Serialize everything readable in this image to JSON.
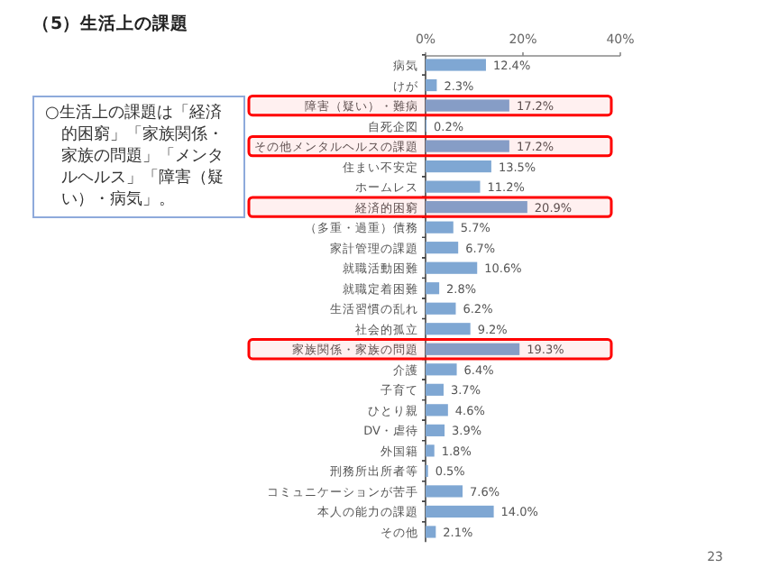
{
  "chart_data": {
    "type": "bar",
    "orientation": "horizontal",
    "title": "（5）生活上の課題",
    "categories": [
      "病気",
      "けが",
      "障害（疑い）・難病",
      "自死企図",
      "その他メンタルヘルスの課題",
      "住まい不安定",
      "ホームレス",
      "経済的困窮",
      "（多重・過重）債務",
      "家計管理の課題",
      "就職活動困難",
      "就職定着困難",
      "生活習慣の乱れ",
      "社会的孤立",
      "家族関係・家族の問題",
      "介護",
      "子育て",
      "ひとり親",
      "DV・虐待",
      "外国籍",
      "刑務所出所者等",
      "コミュニケーションが苦手",
      "本人の能力の課題",
      "その他"
    ],
    "values": [
      12.4,
      2.3,
      17.2,
      0.2,
      17.2,
      13.5,
      11.2,
      20.9,
      5.7,
      6.7,
      10.6,
      2.8,
      6.2,
      9.2,
      19.3,
      6.4,
      3.7,
      4.6,
      3.9,
      1.8,
      0.5,
      7.6,
      14.0,
      2.1
    ],
    "value_labels": [
      "12.4%",
      "2.3%",
      "17.2%",
      "0.2%",
      "17.2%",
      "13.5%",
      "11.2%",
      "20.9%",
      "5.7%",
      "6.7%",
      "10.6%",
      "2.8%",
      "6.2%",
      "9.2%",
      "19.3%",
      "6.4%",
      "3.7%",
      "4.6%",
      "3.9%",
      "1.8%",
      "0.5%",
      "7.6%",
      "14.0%",
      "2.1%"
    ],
    "color": "#7fa7d3",
    "xlim": [
      0,
      40
    ],
    "xticks": [
      {
        "value": 0,
        "label": "0%"
      },
      {
        "value": 20,
        "label": "20%"
      },
      {
        "value": 40,
        "label": "40%"
      }
    ],
    "bands": [
      {
        "axis": "y",
        "from": "障害（疑い）・難病",
        "to": "障害（疑い）・難病",
        "color": "#ff0000"
      },
      {
        "axis": "y",
        "from": "その他メンタルヘルスの課題",
        "to": "その他メンタルヘルスの課題",
        "color": "#ff0000"
      },
      {
        "axis": "y",
        "from": "経済的困窮",
        "to": "経済的困窮",
        "color": "#ff0000"
      },
      {
        "axis": "y",
        "from": "家族関係・家族の問題",
        "to": "家族関係・家族の問題",
        "color": "#ff0000"
      }
    ],
    "annotations": [
      "○生活上の課題は「経済的困窮」「家族関係・家族の問題」「メンタルヘルス」「障害（疑い）・病気」。",
      "23"
    ]
  }
}
